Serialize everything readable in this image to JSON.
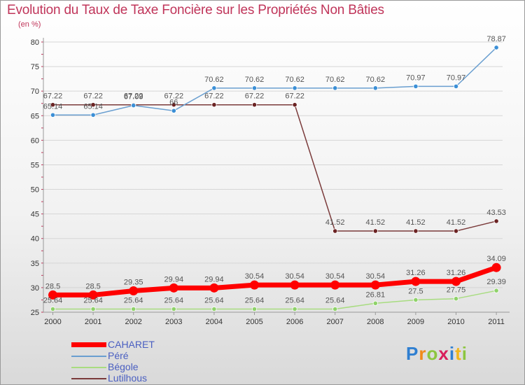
{
  "title": "Evolution du Taux de Taxe Foncière sur les Propriétés Non Bâties",
  "unit_label": "(en %)",
  "logo": {
    "p": "P",
    "r": "r",
    "o": "o",
    "x": "x",
    "i1": "i",
    "t": "t",
    "i2": "i"
  },
  "chart_data": {
    "type": "line",
    "title": "Evolution du Taux de Taxe Foncière sur les Propriétés Non Bâties",
    "ylabel": "(en %)",
    "xlabel": "",
    "ylim": [
      25,
      80
    ],
    "yticks": [
      25,
      30,
      35,
      40,
      45,
      50,
      55,
      60,
      65,
      70,
      75,
      80
    ],
    "categories": [
      "2000",
      "2001",
      "2002",
      "2003",
      "2004",
      "2005",
      "2006",
      "2007",
      "2008",
      "2009",
      "2010",
      "2011"
    ],
    "series": [
      {
        "name": "CAHARET",
        "color": "#ff0000",
        "emphasis": true,
        "values": [
          28.5,
          28.5,
          29.35,
          29.94,
          29.94,
          30.54,
          30.54,
          30.54,
          30.54,
          31.26,
          31.26,
          34.09
        ],
        "labels": [
          "28.5",
          "28.5",
          "29.35",
          "29.94",
          "29.94",
          "30.54",
          "30.54",
          "30.54",
          "30.54",
          "31.26",
          "31.26",
          "34.09"
        ]
      },
      {
        "name": "Péré",
        "color": "#6a9fd0",
        "point": "#3b8fd6",
        "values": [
          65.14,
          65.14,
          67.09,
          66,
          70.62,
          70.62,
          70.62,
          70.62,
          70.62,
          70.97,
          70.97,
          78.87
        ],
        "labels": [
          "65.14",
          "65.14",
          "67.09",
          "66",
          "70.62",
          "70.62",
          "70.62",
          "70.62",
          "70.62",
          "70.97",
          "70.97",
          "78.87"
        ]
      },
      {
        "name": "Bégole",
        "color": "#a8dc80",
        "point": "#8fd26a",
        "values": [
          25.64,
          25.64,
          25.64,
          25.64,
          25.64,
          25.64,
          25.64,
          25.64,
          26.81,
          27.5,
          27.75,
          29.39
        ],
        "labels": [
          "25.64",
          "25.64",
          "25.64",
          "25.64",
          "25.64",
          "25.64",
          "25.64",
          "25.64",
          "26.81",
          "27.5",
          "27.75",
          "29.39"
        ]
      },
      {
        "name": "Lutilhous",
        "color": "#7a3a3a",
        "point": "#6b2323",
        "values": [
          67.22,
          67.22,
          67.22,
          67.22,
          67.22,
          67.22,
          67.22,
          41.52,
          41.52,
          41.52,
          41.52,
          43.53
        ],
        "labels": [
          "67.22",
          "67.22",
          "67.22",
          "67.22",
          "67.22",
          "67.22",
          "67.22",
          "41.52",
          "41.52",
          "41.52",
          "41.52",
          "43.53"
        ]
      }
    ],
    "legend_position": "bottom-left"
  }
}
